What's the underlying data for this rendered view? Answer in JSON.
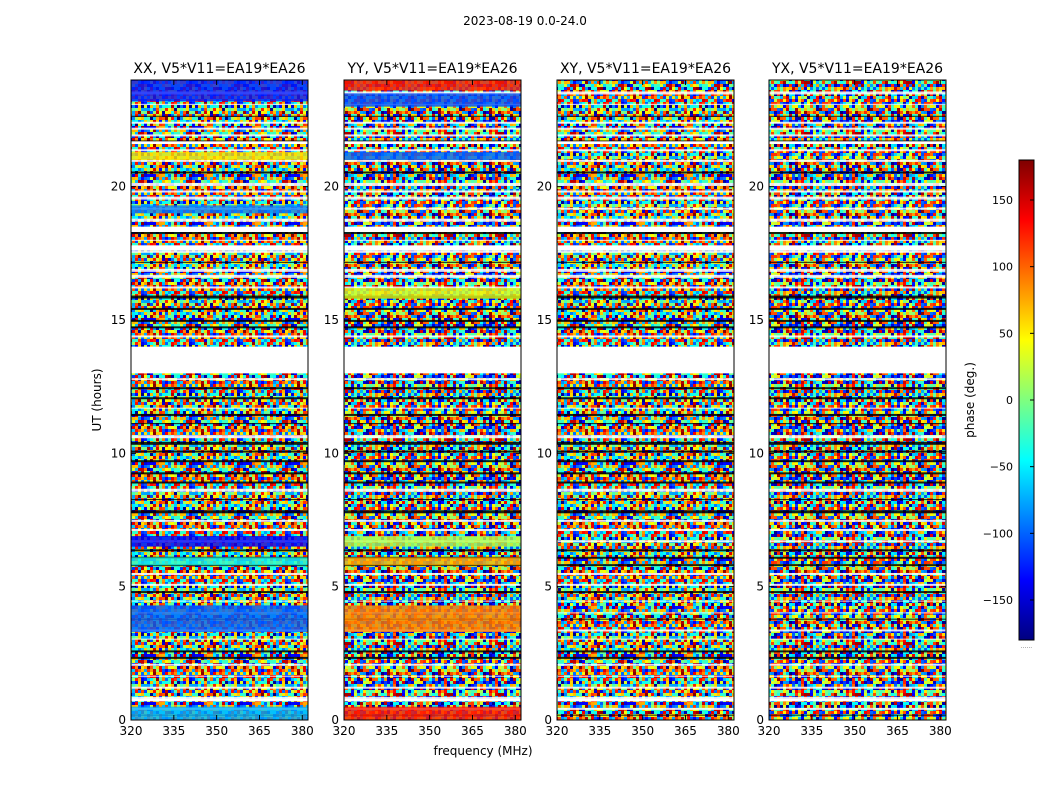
{
  "figure_title": "2023-08-19 0.0-24.0",
  "colors": {
    "jet": [
      "#00007f",
      "#0000ff",
      "#007fff",
      "#00ffff",
      "#7fff7f",
      "#ffff00",
      "#ff7f00",
      "#ff0000",
      "#7f0000"
    ],
    "flag_white": "#ffffff",
    "flag_black": "#000000"
  },
  "chart_data": {
    "type": "heatmap",
    "description_kind": "waterfall phase plot",
    "xlabel": "frequency (MHz)",
    "ylabel": "UT (hours)",
    "xlim": [
      320,
      382
    ],
    "ylim": [
      0,
      24
    ],
    "xticks": [
      320,
      335,
      350,
      365,
      380
    ],
    "yticks": [
      0,
      5,
      10,
      15,
      20
    ],
    "colorbar": {
      "label": "phase (deg.)",
      "range": [
        -180,
        180
      ],
      "ticks": [
        150,
        100,
        50,
        0,
        -50,
        -100,
        -150
      ],
      "tick_labels": [
        "150",
        "100",
        "50",
        "0",
        "−50",
        "−100",
        "−150"
      ],
      "footer": "......"
    },
    "flagged_gaps_hours": [
      [
        13.0,
        14.0
      ],
      [
        17.6,
        17.8
      ],
      [
        18.3,
        18.5
      ],
      [
        21.6,
        21.7
      ],
      [
        0.7,
        0.8
      ]
    ],
    "panels": [
      {
        "title": "XX, V5*V11=EA19*EA26",
        "coherent_bands": [
          [
            23.2,
            24.0,
            0.15
          ],
          [
            21.0,
            21.3,
            0.65
          ],
          [
            19.0,
            19.3,
            0.25
          ],
          [
            6.5,
            6.9,
            0.12
          ],
          [
            5.8,
            6.1,
            0.4
          ],
          [
            3.3,
            4.3,
            0.22
          ],
          [
            0.0,
            0.5,
            0.3
          ]
        ]
      },
      {
        "title": "YY, V5*V11=EA19*EA26",
        "coherent_bands": [
          [
            23.6,
            24.0,
            0.85
          ],
          [
            23.0,
            23.5,
            0.2
          ],
          [
            21.0,
            21.3,
            0.22
          ],
          [
            15.8,
            16.2,
            0.6
          ],
          [
            6.5,
            6.9,
            0.55
          ],
          [
            5.8,
            6.1,
            0.7
          ],
          [
            3.3,
            4.3,
            0.75
          ],
          [
            0.0,
            0.5,
            0.85
          ]
        ]
      },
      {
        "title": "XY, V5*V11=EA19*EA26",
        "coherent_bands": []
      },
      {
        "title": "YX, V5*V11=EA19*EA26",
        "coherent_bands": []
      }
    ]
  }
}
